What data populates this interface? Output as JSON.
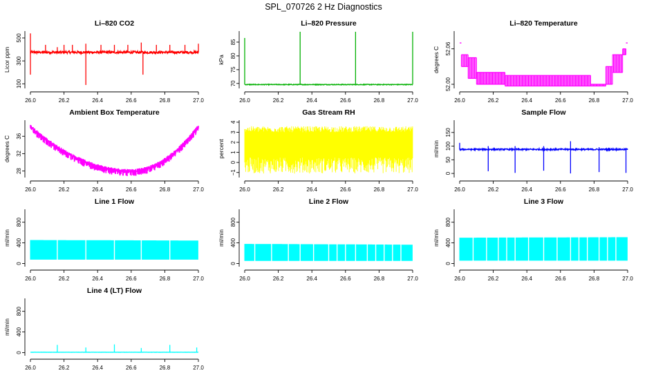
{
  "figure": {
    "title": "SPL_070726  2 Hz Diagnostics"
  },
  "chart_data": [
    {
      "id": "co2",
      "type": "line",
      "title": "Li–820 CO2",
      "ylabel": "Licor ppm",
      "color": "#ff0000",
      "xlim": [
        26.0,
        27.0
      ],
      "ylim": [
        60,
        560
      ],
      "yticks": [
        100,
        300,
        500
      ],
      "ytick_labels": [
        "100",
        "300",
        "500"
      ],
      "xticks": [
        26.0,
        26.2,
        26.4,
        26.6,
        26.8,
        27.0
      ],
      "xtick_labels": [
        "26.0",
        "26.2",
        "26.4",
        "26.6",
        "26.8",
        "27.0"
      ],
      "trace": {
        "kind": "line",
        "baseline": 375,
        "noise": 22,
        "band": 0,
        "slope": 0,
        "spikes": [
          {
            "x": 26.0,
            "y": 540
          },
          {
            "x": 26.0,
            "y": 180
          },
          {
            "x": 26.09,
            "y": 440
          },
          {
            "x": 26.16,
            "y": 420
          },
          {
            "x": 26.2,
            "y": 440
          },
          {
            "x": 26.25,
            "y": 440
          },
          {
            "x": 26.33,
            "y": 90
          },
          {
            "x": 26.33,
            "y": 450
          },
          {
            "x": 26.42,
            "y": 440
          },
          {
            "x": 26.5,
            "y": 440
          },
          {
            "x": 26.58,
            "y": 440
          },
          {
            "x": 26.66,
            "y": 460
          },
          {
            "x": 26.67,
            "y": 180
          },
          {
            "x": 26.75,
            "y": 440
          },
          {
            "x": 26.83,
            "y": 440
          },
          {
            "x": 26.92,
            "y": 440
          },
          {
            "x": 27.0,
            "y": 450
          }
        ]
      }
    },
    {
      "id": "pressure",
      "type": "line",
      "title": "Li–820 Pressure",
      "ylabel": "kPa",
      "color": "#00b000",
      "xlim": [
        26.0,
        27.0
      ],
      "ylim": [
        68.2,
        89
      ],
      "yticks": [
        70,
        75,
        80,
        85
      ],
      "ytick_labels": [
        "70",
        "75",
        "80",
        "85"
      ],
      "xticks": [
        26.0,
        26.2,
        26.4,
        26.6,
        26.8,
        27.0
      ],
      "xtick_labels": [
        "26.0",
        "26.2",
        "26.4",
        "26.6",
        "26.8",
        "27.0"
      ],
      "trace": {
        "kind": "line",
        "baseline": 69.6,
        "noise": 0.25,
        "band": 0,
        "slope": 0,
        "spikes": [
          {
            "x": 26.0,
            "y": 86.5
          },
          {
            "x": 26.33,
            "y": 88.8
          },
          {
            "x": 26.66,
            "y": 88.8
          },
          {
            "x": 27.0,
            "y": 88.8
          }
        ]
      }
    },
    {
      "id": "licor-temp",
      "type": "line",
      "title": "Li–820 Temperature",
      "ylabel": "degrees C",
      "color": "#ff00ff",
      "xlim": [
        26.0,
        27.0
      ],
      "ylim": [
        51.993,
        52.09
      ],
      "yticks": [
        52.0,
        52.06
      ],
      "ytick_labels": [
        "52.00",
        "52.06"
      ],
      "xticks": [
        26.0,
        26.2,
        26.4,
        26.6,
        26.8,
        27.0
      ],
      "xtick_labels": [
        "26.0",
        "26.2",
        "26.4",
        "26.6",
        "26.8",
        "27.0"
      ],
      "trace": {
        "kind": "step",
        "step_x": [
          26.0,
          26.01,
          26.05,
          26.1,
          26.27,
          26.78,
          26.87,
          26.91,
          26.97,
          26.99,
          27.0
        ],
        "step_lo": [
          52.07,
          52.03,
          52.01,
          52.0,
          51.997,
          51.997,
          52.0,
          52.02,
          52.05,
          52.07,
          52.08
        ],
        "step_hi": [
          52.07,
          52.05,
          52.045,
          52.02,
          52.015,
          52.0,
          52.03,
          52.05,
          52.06,
          52.07,
          52.085
        ]
      }
    },
    {
      "id": "ambient-temp",
      "type": "line",
      "title": "Ambient Box Temperature",
      "ylabel": "degrees C",
      "color": "#ff00ff",
      "xlim": [
        26.0,
        27.0
      ],
      "ylim": [
        26.5,
        39.7
      ],
      "yticks": [
        28,
        32,
        36
      ],
      "ytick_labels": [
        "28",
        "32",
        "36"
      ],
      "xticks": [
        26.0,
        26.2,
        26.4,
        26.6,
        26.8,
        27.0
      ],
      "xtick_labels": [
        "26.0",
        "26.2",
        "26.4",
        "26.6",
        "26.8",
        "27.0"
      ],
      "trace": {
        "kind": "parabola",
        "vertex_x": 26.6,
        "vertex_y": 28.0,
        "end_y": 38.3,
        "start_y": 38.2,
        "noise": 1.2,
        "spikes": []
      }
    },
    {
      "id": "gas-rh",
      "type": "line",
      "title": "Gas Stream RH",
      "ylabel": "percent",
      "color": "#ffff00",
      "xlim": [
        26.0,
        27.0
      ],
      "ylim": [
        -1.5,
        4.2
      ],
      "yticks": [
        -1,
        0,
        1,
        2,
        3,
        4
      ],
      "ytick_labels": [
        "−1",
        "0",
        "1",
        "2",
        "3",
        "4"
      ],
      "xticks": [
        26.0,
        26.2,
        26.4,
        26.6,
        26.8,
        27.0
      ],
      "xtick_labels": [
        "26.0",
        "26.2",
        "26.4",
        "26.6",
        "26.8",
        "27.0"
      ],
      "trace": {
        "kind": "band",
        "lo": -1.1,
        "hi": 3.6,
        "core_lo": 0.5,
        "core_hi": 3.0
      }
    },
    {
      "id": "sample-flow",
      "type": "line",
      "title": "Sample Flow",
      "ylabel": "ml/min",
      "color": "#0000ff",
      "xlim": [
        26.0,
        27.0
      ],
      "ylim": [
        -15,
        195
      ],
      "yticks": [
        0,
        50,
        100,
        150
      ],
      "ytick_labels": [
        "0",
        "50",
        "100",
        "150"
      ],
      "xticks": [
        26.0,
        26.2,
        26.4,
        26.6,
        26.8,
        27.0
      ],
      "xtick_labels": [
        "26.0",
        "26.2",
        "26.4",
        "26.6",
        "26.8",
        "27.0"
      ],
      "trace": {
        "kind": "line",
        "baseline": 88,
        "noise": 5,
        "band": 0,
        "slope": 0,
        "spikes": [
          {
            "x": 26.0,
            "y": 112
          },
          {
            "x": 26.17,
            "y": 8
          },
          {
            "x": 26.17,
            "y": 100
          },
          {
            "x": 26.33,
            "y": 2
          },
          {
            "x": 26.33,
            "y": 100
          },
          {
            "x": 26.5,
            "y": 10
          },
          {
            "x": 26.5,
            "y": 100
          },
          {
            "x": 26.66,
            "y": 0
          },
          {
            "x": 26.66,
            "y": 118
          },
          {
            "x": 26.83,
            "y": 5
          },
          {
            "x": 26.83,
            "y": 96
          },
          {
            "x": 26.99,
            "y": 2
          }
        ]
      }
    },
    {
      "id": "line1-flow",
      "type": "line",
      "title": "Line 1 Flow",
      "ylabel": "ml/min",
      "color": "#00ffff",
      "xlim": [
        26.0,
        27.0
      ],
      "ylim": [
        -60,
        1050
      ],
      "yticks": [
        0,
        400,
        800
      ],
      "ytick_labels": [
        "0",
        "400",
        "800"
      ],
      "xticks": [
        26.0,
        26.2,
        26.4,
        26.6,
        26.8,
        27.0
      ],
      "xtick_labels": [
        "26.0",
        "26.2",
        "26.4",
        "26.6",
        "26.8",
        "27.0"
      ],
      "trace": {
        "kind": "block",
        "lo": 75,
        "hi_start": 455,
        "hi_end": 445,
        "gaps": [
          26.16,
          26.33,
          26.5,
          26.66,
          26.83
        ]
      }
    },
    {
      "id": "line2-flow",
      "type": "line",
      "title": "Line 2 Flow",
      "ylabel": "ml/min",
      "color": "#00ffff",
      "xlim": [
        26.0,
        27.0
      ],
      "ylim": [
        -60,
        1050
      ],
      "yticks": [
        0,
        400,
        800
      ],
      "ytick_labels": [
        "0",
        "400",
        "800"
      ],
      "xticks": [
        26.0,
        26.2,
        26.4,
        26.6,
        26.8,
        27.0
      ],
      "xtick_labels": [
        "26.0",
        "26.2",
        "26.4",
        "26.6",
        "26.8",
        "27.0"
      ],
      "trace": {
        "kind": "block",
        "lo": 50,
        "hi_start": 380,
        "hi_end": 365,
        "gaps": [
          26.06,
          26.16,
          26.26,
          26.33,
          26.41,
          26.5,
          26.55,
          26.6,
          26.66,
          26.73,
          26.78,
          26.83,
          26.88,
          26.93
        ]
      }
    },
    {
      "id": "line3-flow",
      "type": "line",
      "title": "Line 3 Flow",
      "ylabel": "ml/min",
      "color": "#00ffff",
      "xlim": [
        26.0,
        27.0
      ],
      "ylim": [
        -60,
        1050
      ],
      "yticks": [
        0,
        400,
        800
      ],
      "ytick_labels": [
        "0",
        "400",
        "800"
      ],
      "xticks": [
        26.0,
        26.2,
        26.4,
        26.6,
        26.8,
        27.0
      ],
      "xtick_labels": [
        "26.0",
        "26.2",
        "26.4",
        "26.6",
        "26.8",
        "27.0"
      ],
      "trace": {
        "kind": "block",
        "lo": 55,
        "hi_start": 500,
        "hi_end": 510,
        "gaps": [
          26.08,
          26.16,
          26.23,
          26.28,
          26.33,
          26.41,
          26.5,
          26.58,
          26.66,
          26.71,
          26.76,
          26.83,
          26.88,
          26.93
        ]
      }
    },
    {
      "id": "line4-flow",
      "type": "line",
      "title": "Line 4 (LT) Flow",
      "ylabel": "ml/min",
      "color": "#00ffff",
      "xlim": [
        26.0,
        27.0
      ],
      "ylim": [
        -60,
        1050
      ],
      "yticks": [
        0,
        400,
        800
      ],
      "ytick_labels": [
        "0",
        "400",
        "800"
      ],
      "xticks": [
        26.0,
        26.2,
        26.4,
        26.6,
        26.8,
        27.0
      ],
      "xtick_labels": [
        "26.0",
        "26.2",
        "26.4",
        "26.6",
        "26.8",
        "27.0"
      ],
      "trace": {
        "kind": "line",
        "baseline": 8,
        "noise": 3,
        "band": 0,
        "slope": 0,
        "spikes": [
          {
            "x": 26.16,
            "y": 150
          },
          {
            "x": 26.33,
            "y": 100
          },
          {
            "x": 26.5,
            "y": 160
          },
          {
            "x": 26.66,
            "y": 90
          },
          {
            "x": 26.83,
            "y": 150
          },
          {
            "x": 26.99,
            "y": 100
          }
        ]
      }
    }
  ]
}
